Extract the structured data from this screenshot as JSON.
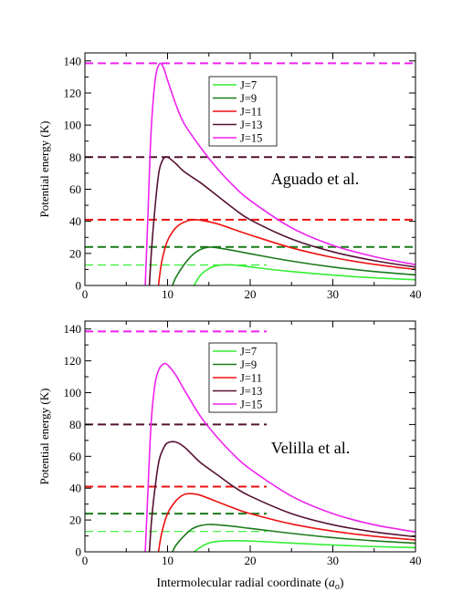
{
  "figure": {
    "xlabel_main": "Intermolecular radial coordinate (",
    "xlabel_sym": "a",
    "xlabel_sub": "o",
    "xlabel_end": ")"
  },
  "colors": {
    "J=7": "#33ee33",
    "J=9": "#1a7a1a",
    "J=11": "#ee1111",
    "J=13": "#551133",
    "J=15": "#ee22ee"
  },
  "chart_data": [
    {
      "type": "line",
      "annotation": "Aguado et al.",
      "xlabel": "",
      "ylabel": "Potential energy (K)",
      "xlim": [
        0,
        40
      ],
      "ylim": [
        0,
        145
      ],
      "xticks": [
        0,
        10,
        20,
        30,
        40
      ],
      "yticks": [
        0,
        20,
        40,
        60,
        80,
        100,
        120,
        140
      ],
      "legend": {
        "position": "top-center",
        "entries": [
          "J=7",
          "J=9",
          "J=11",
          "J=13",
          "J=15"
        ]
      },
      "series": [
        {
          "name": "J=7",
          "x": [
            13.2,
            14,
            15,
            16,
            17,
            18,
            20,
            22,
            25,
            30,
            35,
            40
          ],
          "y": [
            0,
            6.5,
            10.5,
            12.4,
            12.9,
            12.8,
            11.6,
            10.3,
            8.7,
            6.5,
            4.8,
            3.6
          ]
        },
        {
          "name": "J=9",
          "x": [
            10.6,
            11,
            12,
            13,
            14,
            15,
            16,
            18,
            20,
            25,
            30,
            35,
            40
          ],
          "y": [
            0,
            5,
            13,
            19,
            22.5,
            23.9,
            23.5,
            21.8,
            19.8,
            15.2,
            11.5,
            8.7,
            6.6
          ]
        },
        {
          "name": "J=11",
          "x": [
            8.9,
            9.3,
            10,
            11,
            12,
            13,
            14,
            16,
            18,
            20,
            25,
            30,
            35,
            40
          ],
          "y": [
            0,
            15,
            28,
            36,
            39.5,
            41,
            40.7,
            38.5,
            35,
            31.5,
            23.5,
            17.5,
            13.2,
            10
          ]
        },
        {
          "name": "J=13",
          "x": [
            7.8,
            8.1,
            8.6,
            9.0,
            9.5,
            10.0,
            11,
            12,
            14,
            16,
            18,
            20,
            25,
            30,
            35,
            40
          ],
          "y": [
            0,
            25,
            55,
            72,
            79,
            80,
            76,
            71,
            64,
            56,
            48,
            41,
            29,
            21,
            15.5,
            11.5
          ]
        },
        {
          "name": "J=15",
          "x": [
            7.3,
            7.6,
            8.0,
            8.5,
            9.0,
            9.5,
            10,
            11,
            12,
            14,
            16,
            18,
            20,
            25,
            30,
            35,
            40
          ],
          "y": [
            0,
            40,
            95,
            128,
            138,
            136,
            128,
            113,
            101,
            86,
            73,
            62,
            53,
            36,
            25,
            18,
            13
          ]
        }
      ],
      "dashed_lines": [
        {
          "name": "J=7",
          "y": 12.8,
          "x": [
            0,
            22
          ]
        },
        {
          "name": "J=9",
          "y": 24,
          "x": [
            0,
            40
          ]
        },
        {
          "name": "J=11",
          "y": 41,
          "x": [
            0,
            40
          ]
        },
        {
          "name": "J=13",
          "y": 80,
          "x": [
            0,
            40
          ]
        },
        {
          "name": "J=15",
          "y": 138.5,
          "x": [
            0,
            40
          ]
        }
      ]
    },
    {
      "type": "line",
      "annotation": "Velilla et al.",
      "xlabel": "Intermolecular radial coordinate (a_o)",
      "ylabel": "Potential energy (K)",
      "xlim": [
        0,
        40
      ],
      "ylim": [
        0,
        145
      ],
      "xticks": [
        0,
        10,
        20,
        30,
        40
      ],
      "yticks": [
        0,
        20,
        40,
        60,
        80,
        100,
        120,
        140
      ],
      "legend": {
        "position": "top-center",
        "entries": [
          "J=7",
          "J=9",
          "J=11",
          "J=13",
          "J=15"
        ]
      },
      "series": [
        {
          "name": "J=7",
          "x": [
            13.2,
            14,
            15,
            16,
            18,
            20,
            22,
            25,
            30,
            35,
            40
          ],
          "y": [
            0,
            3,
            5.5,
            6.5,
            7,
            6.8,
            6.3,
            5.5,
            4.3,
            3.3,
            2.6
          ]
        },
        {
          "name": "J=9",
          "x": [
            10.6,
            11,
            12,
            13,
            14,
            15,
            16,
            18,
            20,
            25,
            30,
            35,
            40
          ],
          "y": [
            0,
            4,
            10,
            14.5,
            16.5,
            17.2,
            17,
            16,
            14.7,
            11.6,
            8.9,
            6.9,
            5.4
          ]
        },
        {
          "name": "J=11",
          "x": [
            8.9,
            9.3,
            10,
            11,
            12,
            13,
            14,
            16,
            18,
            20,
            25,
            30,
            35,
            40
          ],
          "y": [
            0,
            12,
            24,
            32,
            36,
            36.5,
            35.5,
            31.5,
            27.5,
            24,
            17.5,
            13,
            9.8,
            7.5
          ]
        },
        {
          "name": "J=13",
          "x": [
            7.8,
            8.1,
            8.6,
            9.0,
            9.5,
            10,
            11,
            12,
            13,
            14,
            16,
            18,
            20,
            25,
            30,
            35,
            40
          ],
          "y": [
            0,
            22,
            45,
            58,
            65,
            68.5,
            69,
            66,
            61,
            56,
            48.5,
            41,
            35,
            24,
            17,
            12.5,
            9.5
          ]
        },
        {
          "name": "J=15",
          "x": [
            7.3,
            7.6,
            8.0,
            8.5,
            9.0,
            9.5,
            10,
            11,
            12,
            14,
            16,
            18,
            20,
            25,
            30,
            35,
            40
          ],
          "y": [
            0,
            35,
            80,
            106,
            115,
            118,
            117.5,
            111,
            102,
            85,
            72,
            61,
            52,
            35,
            24,
            17,
            12.5
          ]
        }
      ],
      "dashed_lines": [
        {
          "name": "J=7",
          "y": 12.8,
          "x": [
            0,
            22
          ]
        },
        {
          "name": "J=9",
          "y": 24,
          "x": [
            0,
            22
          ]
        },
        {
          "name": "J=11",
          "y": 41,
          "x": [
            0,
            22
          ]
        },
        {
          "name": "J=13",
          "y": 80,
          "x": [
            0,
            22
          ]
        },
        {
          "name": "J=15",
          "y": 138.5,
          "x": [
            0,
            22
          ]
        }
      ]
    }
  ]
}
